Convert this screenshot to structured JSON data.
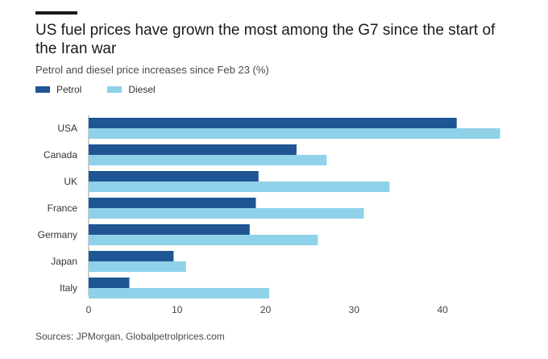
{
  "header": {
    "title": "US fuel prices have grown the most among the G7 since the start of the Iran war",
    "subtitle": "Petrol and diesel price increases since Feb 23 (%)"
  },
  "footer": {
    "source": "Sources: JPMorgan, Globalpetrolprices.com"
  },
  "colors": {
    "petrol": "#1f5592",
    "diesel": "#8fd1e8",
    "axis": "#555555",
    "grid": "#e6e6e6"
  },
  "chart_data": {
    "type": "bar",
    "orientation": "horizontal",
    "title": "US fuel prices have grown the most among the G7 since the start of the Iran war",
    "subtitle": "Petrol and diesel price increases since Feb 23 (%)",
    "categories": [
      "USA",
      "Canada",
      "UK",
      "France",
      "Germany",
      "Japan",
      "Italy"
    ],
    "series": [
      {
        "name": "Petrol",
        "values": [
          41.6,
          23.5,
          19.2,
          18.9,
          18.2,
          9.6,
          4.6
        ]
      },
      {
        "name": "Diesel",
        "values": [
          46.5,
          26.9,
          34.0,
          31.1,
          25.9,
          11.0,
          20.4
        ]
      }
    ],
    "xlim": [
      0,
      47
    ],
    "xticks": [
      0,
      10,
      20,
      30,
      40
    ],
    "legend": "top-left",
    "grid": false
  }
}
